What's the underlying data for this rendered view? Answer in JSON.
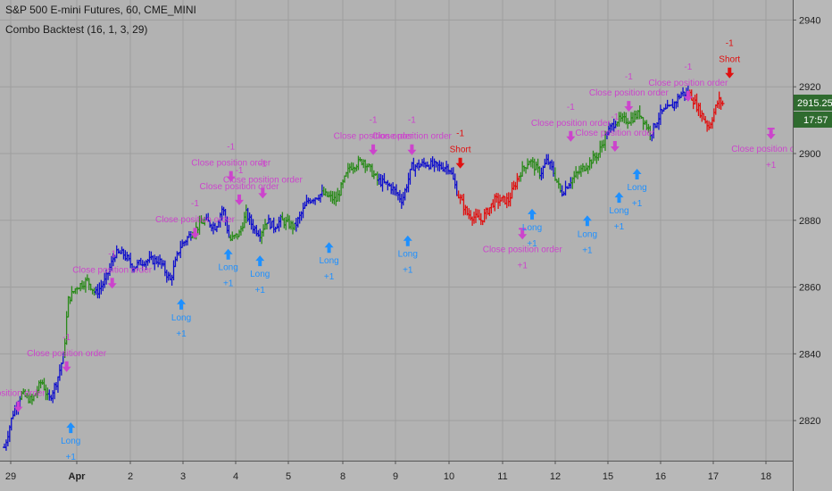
{
  "header": {
    "symbol_line": "S&P 500 E-mini Futures, 60, CME_MINI",
    "strategy_line": "Combo Backtest (16, 1, 3, 29)"
  },
  "price_badge": {
    "value": "2915.25",
    "color": "#2f6b2f"
  },
  "timer_badge": {
    "value": "17:57",
    "color": "#2f6b2f"
  },
  "colors": {
    "background": "#b2b2b2",
    "grid": "#9e9e9e",
    "axis_bg": "#b8b8b8",
    "bar_green": "#2a8a1a",
    "bar_blue": "#1010cc",
    "bar_red": "#e01010",
    "long_signal": "#1e90ff",
    "close_signal": "#cc44cc",
    "short_signal": "#e01010"
  },
  "chart_data": {
    "type": "ohlc",
    "y_ticks": [
      2820,
      2840,
      2860,
      2880,
      2900,
      2920,
      2940
    ],
    "ylim": [
      2808,
      2946
    ],
    "x_ticks": [
      "29",
      "Apr",
      "2",
      "3",
      "4",
      "5",
      "8",
      "9",
      "10",
      "11",
      "12",
      "15",
      "16",
      "17",
      "18"
    ],
    "last_price": 2915.25,
    "series_path": [
      {
        "t": 0,
        "p": 2812,
        "c": "blue"
      },
      {
        "t": 0.6,
        "p": 2822,
        "c": "blue"
      },
      {
        "t": 1.2,
        "p": 2828,
        "c": "green"
      },
      {
        "t": 2,
        "p": 2826,
        "c": "green"
      },
      {
        "t": 2.7,
        "p": 2832,
        "c": "green"
      },
      {
        "t": 3.2,
        "p": 2826,
        "c": "blue"
      },
      {
        "t": 3.8,
        "p": 2832,
        "c": "blue"
      },
      {
        "t": 4.3,
        "p": 2840,
        "c": "green"
      },
      {
        "t": 4.6,
        "p": 2856,
        "c": "green"
      },
      {
        "t": 5.2,
        "p": 2860,
        "c": "green"
      },
      {
        "t": 6,
        "p": 2862,
        "c": "green"
      },
      {
        "t": 6.6,
        "p": 2858,
        "c": "blue"
      },
      {
        "t": 7.3,
        "p": 2862,
        "c": "blue"
      },
      {
        "t": 8,
        "p": 2870,
        "c": "blue"
      },
      {
        "t": 8.6,
        "p": 2870,
        "c": "blue"
      },
      {
        "t": 9.3,
        "p": 2866,
        "c": "blue"
      },
      {
        "t": 10.2,
        "p": 2868,
        "c": "blue"
      },
      {
        "t": 11.2,
        "p": 2868,
        "c": "blue"
      },
      {
        "t": 12,
        "p": 2862,
        "c": "blue"
      },
      {
        "t": 12.7,
        "p": 2872,
        "c": "blue"
      },
      {
        "t": 13.5,
        "p": 2876,
        "c": "green"
      },
      {
        "t": 14.5,
        "p": 2880,
        "c": "blue"
      },
      {
        "t": 15.3,
        "p": 2878,
        "c": "blue"
      },
      {
        "t": 15.8,
        "p": 2884,
        "c": "blue"
      },
      {
        "t": 16.3,
        "p": 2874,
        "c": "green"
      },
      {
        "t": 17,
        "p": 2876,
        "c": "green"
      },
      {
        "t": 17.5,
        "p": 2882,
        "c": "blue"
      },
      {
        "t": 18,
        "p": 2878,
        "c": "blue"
      },
      {
        "t": 18.5,
        "p": 2876,
        "c": "green"
      },
      {
        "t": 19,
        "p": 2880,
        "c": "blue"
      },
      {
        "t": 19.5,
        "p": 2878,
        "c": "blue"
      },
      {
        "t": 20,
        "p": 2880,
        "c": "green"
      },
      {
        "t": 21,
        "p": 2878,
        "c": "blue"
      },
      {
        "t": 22,
        "p": 2886,
        "c": "blue"
      },
      {
        "t": 23,
        "p": 2888,
        "c": "green"
      },
      {
        "t": 24,
        "p": 2886,
        "c": "green"
      },
      {
        "t": 25,
        "p": 2896,
        "c": "green"
      },
      {
        "t": 26,
        "p": 2898,
        "c": "green"
      },
      {
        "t": 27,
        "p": 2892,
        "c": "blue"
      },
      {
        "t": 28,
        "p": 2890,
        "c": "blue"
      },
      {
        "t": 28.8,
        "p": 2886,
        "c": "blue"
      },
      {
        "t": 29.5,
        "p": 2896,
        "c": "blue"
      },
      {
        "t": 30.5,
        "p": 2897,
        "c": "blue"
      },
      {
        "t": 31.5,
        "p": 2896,
        "c": "blue"
      },
      {
        "t": 32.2,
        "p": 2896,
        "c": "blue"
      },
      {
        "t": 32.8,
        "p": 2888,
        "c": "red"
      },
      {
        "t": 33.5,
        "p": 2882,
        "c": "red"
      },
      {
        "t": 34.5,
        "p": 2880,
        "c": "red"
      },
      {
        "t": 35.5,
        "p": 2886,
        "c": "red"
      },
      {
        "t": 36.5,
        "p": 2886,
        "c": "red"
      },
      {
        "t": 37.3,
        "p": 2894,
        "c": "green"
      },
      {
        "t": 38,
        "p": 2898,
        "c": "green"
      },
      {
        "t": 38.8,
        "p": 2894,
        "c": "blue"
      },
      {
        "t": 39.3,
        "p": 2898,
        "c": "blue"
      },
      {
        "t": 39.8,
        "p": 2894,
        "c": "green"
      },
      {
        "t": 40.3,
        "p": 2888,
        "c": "blue"
      },
      {
        "t": 41,
        "p": 2892,
        "c": "green"
      },
      {
        "t": 42,
        "p": 2896,
        "c": "green"
      },
      {
        "t": 43,
        "p": 2900,
        "c": "green"
      },
      {
        "t": 43.6,
        "p": 2906,
        "c": "blue"
      },
      {
        "t": 44.3,
        "p": 2910,
        "c": "green"
      },
      {
        "t": 45.2,
        "p": 2910,
        "c": "green"
      },
      {
        "t": 46,
        "p": 2912,
        "c": "green"
      },
      {
        "t": 46.8,
        "p": 2906,
        "c": "blue"
      },
      {
        "t": 47.5,
        "p": 2912,
        "c": "blue"
      },
      {
        "t": 48.3,
        "p": 2914,
        "c": "blue"
      },
      {
        "t": 49,
        "p": 2918,
        "c": "blue"
      },
      {
        "t": 49.6,
        "p": 2918,
        "c": "red"
      },
      {
        "t": 50.3,
        "p": 2913,
        "c": "red"
      },
      {
        "t": 51,
        "p": 2908,
        "c": "red"
      },
      {
        "t": 51.7,
        "p": 2916,
        "c": "red"
      },
      {
        "t": 52,
        "p": 2915,
        "c": "red"
      }
    ],
    "signals": [
      {
        "type": "close",
        "x": 1,
        "p": 2822,
        "labels": [
          "position order"
        ],
        "qty": ""
      },
      {
        "type": "close",
        "x": 4.5,
        "p": 2834,
        "labels": [
          "Close position order"
        ],
        "qty": "-1"
      },
      {
        "type": "long",
        "x": 4.8,
        "p": 2820,
        "labels": [
          "Long"
        ],
        "qty": "+1"
      },
      {
        "type": "close",
        "x": 7.8,
        "p": 2859,
        "labels": [
          "Close position order"
        ],
        "qty": "-1"
      },
      {
        "type": "long",
        "x": 12.8,
        "p": 2857,
        "labels": [
          "Long"
        ],
        "qty": "+1"
      },
      {
        "type": "close",
        "x": 13.8,
        "p": 2874,
        "labels": [
          "Close position order"
        ],
        "qty": "-1"
      },
      {
        "type": "long",
        "x": 16.2,
        "p": 2872,
        "labels": [
          "Long"
        ],
        "qty": "+1"
      },
      {
        "type": "close",
        "x": 16.4,
        "p": 2891,
        "labels": [
          "Close position order"
        ],
        "qty": "-1"
      },
      {
        "type": "long",
        "x": 18.5,
        "p": 2870,
        "labels": [
          "Long"
        ],
        "qty": "+1"
      },
      {
        "type": "close",
        "x": 17,
        "p": 2884,
        "labels": [
          "Close position order"
        ],
        "qty": "-1"
      },
      {
        "type": "close",
        "x": 18.7,
        "p": 2886,
        "labels": [
          "Close position order"
        ],
        "qty": "-1"
      },
      {
        "type": "long",
        "x": 23.5,
        "p": 2874,
        "labels": [
          "Long"
        ],
        "qty": "+1"
      },
      {
        "type": "close",
        "x": 26.7,
        "p": 2899,
        "labels": [
          "Close position order"
        ],
        "qty": "-1"
      },
      {
        "type": "long",
        "x": 29.2,
        "p": 2876,
        "labels": [
          "Long"
        ],
        "qty": "+1"
      },
      {
        "type": "close",
        "x": 29.5,
        "p": 2899,
        "labels": [
          "Close position order"
        ],
        "qty": "-1"
      },
      {
        "type": "short",
        "x": 33,
        "p": 2895,
        "labels": [
          "Short"
        ],
        "qty": "-1"
      },
      {
        "type": "close",
        "x": 37.5,
        "p": 2878,
        "labels": [
          "Close position order"
        ],
        "qty": "+1"
      },
      {
        "type": "long",
        "x": 38.2,
        "p": 2884,
        "labels": [
          "Long"
        ],
        "qty": "+1"
      },
      {
        "type": "close",
        "x": 41,
        "p": 2903,
        "labels": [
          "Close position order"
        ],
        "qty": "-1"
      },
      {
        "type": "long",
        "x": 42.2,
        "p": 2882,
        "labels": [
          "Long"
        ],
        "qty": "+1"
      },
      {
        "type": "close",
        "x": 44.2,
        "p": 2900,
        "labels": [
          "Close position order"
        ],
        "qty": "-1"
      },
      {
        "type": "long",
        "x": 44.5,
        "p": 2889,
        "labels": [
          "Long"
        ],
        "qty": "+1"
      },
      {
        "type": "close",
        "x": 45.2,
        "p": 2912,
        "labels": [
          "Close position order"
        ],
        "qty": "-1"
      },
      {
        "type": "long",
        "x": 45.8,
        "p": 2896,
        "labels": [
          "Long"
        ],
        "qty": "+1"
      },
      {
        "type": "close",
        "x": 49.5,
        "p": 2915,
        "labels": [
          "Close position order"
        ],
        "qty": "-1"
      },
      {
        "type": "short",
        "x": 52.5,
        "p": 2922,
        "labels": [
          "Short"
        ],
        "qty": "-1"
      },
      {
        "type": "close",
        "x": 55.5,
        "p": 2908,
        "labels": [
          "Close position order"
        ],
        "qty": "+1"
      }
    ]
  }
}
